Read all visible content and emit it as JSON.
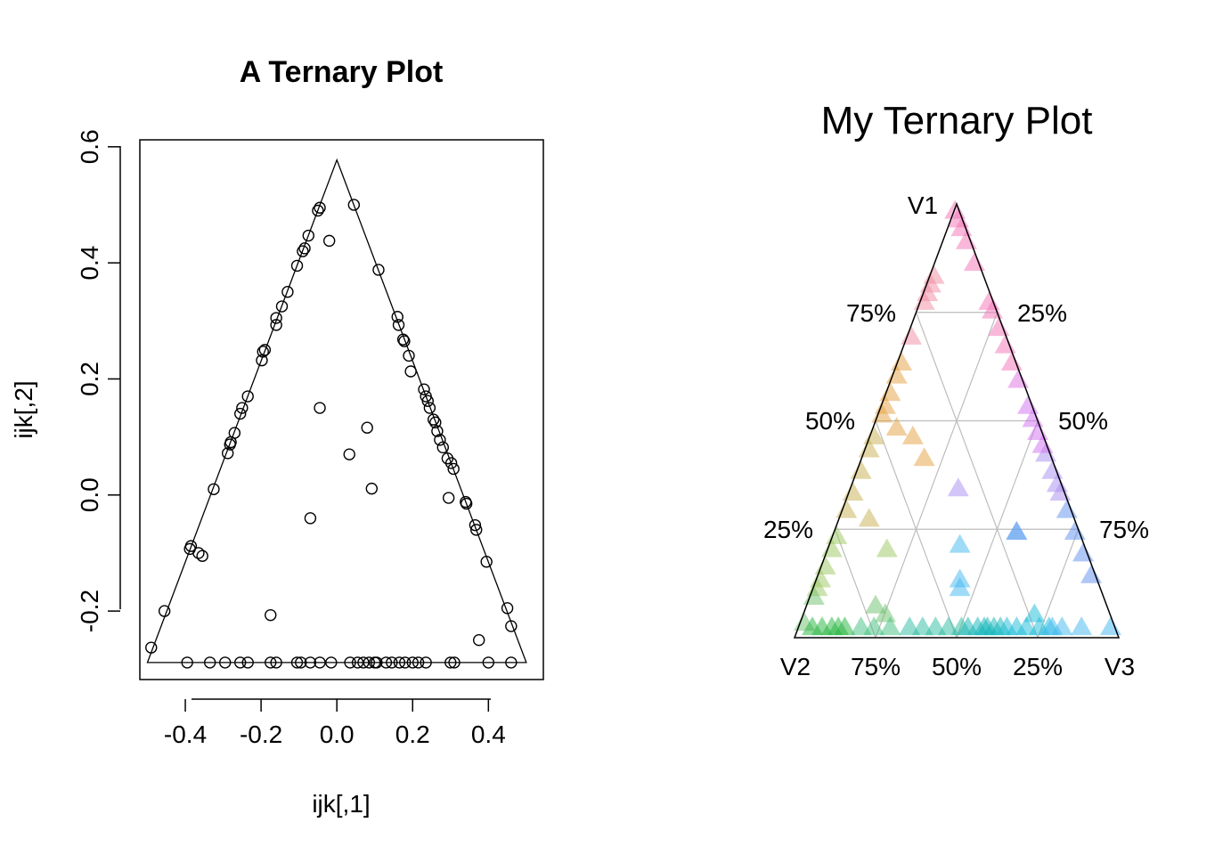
{
  "chart_data": [
    {
      "type": "scatter",
      "title": "A Ternary Plot",
      "xlabel": "ijk[,1]",
      "ylabel": "ijk[,2]",
      "xlim": [
        -0.52,
        0.545
      ],
      "ylim": [
        -0.318,
        0.612
      ],
      "xticks": [
        "-0.4",
        "-0.2",
        "0.0",
        "0.2",
        "0.4"
      ],
      "xtick_values": [
        -0.4,
        -0.2,
        0.0,
        0.2,
        0.4
      ],
      "yticks": [
        "-0.2",
        "0.0",
        "0.2",
        "0.4",
        "0.6"
      ],
      "ytick_values": [
        -0.2,
        0.0,
        0.2,
        0.4,
        0.6
      ],
      "triangle": [
        [
          -0.5,
          -0.2887
        ],
        [
          0.0,
          0.5774
        ],
        [
          0.5,
          -0.2887
        ]
      ],
      "points": [
        [
          -0.05,
          0.49
        ],
        [
          -0.045,
          0.495
        ],
        [
          0.045,
          0.5
        ],
        [
          -0.02,
          0.438
        ],
        [
          -0.075,
          0.447
        ],
        [
          -0.085,
          0.425
        ],
        [
          -0.09,
          0.42
        ],
        [
          -0.105,
          0.395
        ],
        [
          0.11,
          0.388
        ],
        [
          -0.13,
          0.35
        ],
        [
          -0.145,
          0.325
        ],
        [
          -0.16,
          0.305
        ],
        [
          -0.16,
          0.293
        ],
        [
          0.16,
          0.307
        ],
        [
          0.163,
          0.293
        ],
        [
          0.175,
          0.268
        ],
        [
          0.178,
          0.265
        ],
        [
          -0.19,
          0.25
        ],
        [
          -0.195,
          0.247
        ],
        [
          -0.198,
          0.232
        ],
        [
          0.19,
          0.24
        ],
        [
          0.195,
          0.213
        ],
        [
          -0.235,
          0.17
        ],
        [
          0.23,
          0.182
        ],
        [
          0.235,
          0.17
        ],
        [
          0.24,
          0.162
        ],
        [
          0.245,
          0.15
        ],
        [
          -0.25,
          0.15
        ],
        [
          -0.255,
          0.14
        ],
        [
          0.255,
          0.13
        ],
        [
          0.26,
          0.125
        ],
        [
          0.265,
          0.11
        ],
        [
          -0.27,
          0.107
        ],
        [
          -0.28,
          0.091
        ],
        [
          -0.282,
          0.087
        ],
        [
          -0.288,
          0.072
        ],
        [
          0.272,
          0.095
        ],
        [
          0.28,
          0.082
        ],
        [
          0.292,
          0.063
        ],
        [
          0.302,
          0.055
        ],
        [
          0.308,
          0.045
        ],
        [
          -0.325,
          0.01
        ],
        [
          -0.045,
          0.15
        ],
        [
          0.08,
          0.116
        ],
        [
          0.033,
          0.07
        ],
        [
          0.092,
          0.011
        ],
        [
          -0.07,
          -0.04
        ],
        [
          0.295,
          -0.005
        ],
        [
          0.34,
          -0.012
        ],
        [
          0.342,
          -0.015
        ],
        [
          0.365,
          -0.052
        ],
        [
          0.368,
          -0.06
        ],
        [
          -0.385,
          -0.088
        ],
        [
          -0.388,
          -0.093
        ],
        [
          -0.365,
          -0.1
        ],
        [
          -0.355,
          -0.105
        ],
        [
          0.395,
          -0.115
        ],
        [
          -0.175,
          -0.207
        ],
        [
          -0.455,
          -0.2
        ],
        [
          0.45,
          -0.195
        ],
        [
          0.46,
          -0.226
        ],
        [
          0.375,
          -0.25
        ],
        [
          -0.49,
          -0.263
        ],
        [
          -0.395,
          -0.2887
        ],
        [
          -0.335,
          -0.2887
        ],
        [
          -0.295,
          -0.2887
        ],
        [
          -0.255,
          -0.2887
        ],
        [
          -0.235,
          -0.2887
        ],
        [
          -0.175,
          -0.2887
        ],
        [
          -0.16,
          -0.2887
        ],
        [
          -0.105,
          -0.2887
        ],
        [
          -0.095,
          -0.2887
        ],
        [
          -0.07,
          -0.2887
        ],
        [
          -0.045,
          -0.2887
        ],
        [
          -0.015,
          -0.2887
        ],
        [
          0.035,
          -0.2887
        ],
        [
          0.055,
          -0.2887
        ],
        [
          0.07,
          -0.2887
        ],
        [
          0.085,
          -0.2887
        ],
        [
          0.1,
          -0.2887
        ],
        [
          0.105,
          -0.2887
        ],
        [
          0.13,
          -0.2887
        ],
        [
          0.145,
          -0.2887
        ],
        [
          0.165,
          -0.2887
        ],
        [
          0.18,
          -0.2887
        ],
        [
          0.2,
          -0.2887
        ],
        [
          0.215,
          -0.2887
        ],
        [
          0.235,
          -0.2887
        ],
        [
          0.3,
          -0.2887
        ],
        [
          0.31,
          -0.2887
        ],
        [
          0.4,
          -0.2887
        ],
        [
          0.46,
          -0.2887
        ]
      ]
    },
    {
      "type": "ternary",
      "title": "My Ternary Plot",
      "vertex_labels": [
        "V1",
        "V2",
        "V3"
      ],
      "left_ticks": [
        "25%",
        "50%",
        "75%"
      ],
      "right_ticks": [
        "25%",
        "50%",
        "75%"
      ],
      "bottom_ticks": [
        "75%",
        "50%",
        "25%"
      ],
      "grid": true,
      "points": [
        [
          0.97,
          0.02,
          0.01,
          "#f472b6"
        ],
        [
          0.95,
          0.02,
          0.03,
          "#f472b6"
        ],
        [
          0.93,
          0.02,
          0.05,
          "#f472b6"
        ],
        [
          0.9,
          0.02,
          0.08,
          "#f472b6"
        ],
        [
          0.85,
          0.02,
          0.13,
          "#f472b6"
        ],
        [
          0.76,
          0.02,
          0.22,
          "#f472b6"
        ],
        [
          0.74,
          0.02,
          0.24,
          "#f472b6"
        ],
        [
          0.7,
          0.02,
          0.28,
          "#f472b6"
        ],
        [
          0.66,
          0.02,
          0.32,
          "#f472b6"
        ],
        [
          0.62,
          0.02,
          0.36,
          "#f472b6"
        ],
        [
          0.82,
          0.16,
          0.02,
          "#f08aa0"
        ],
        [
          0.8,
          0.18,
          0.02,
          "#f08aa0"
        ],
        [
          0.78,
          0.2,
          0.02,
          "#f08aa0"
        ],
        [
          0.76,
          0.22,
          0.02,
          "#f08aa0"
        ],
        [
          0.68,
          0.3,
          0.02,
          "#f08aa0"
        ],
        [
          0.62,
          0.36,
          0.02,
          "#e6a040"
        ],
        [
          0.59,
          0.39,
          0.02,
          "#e6a040"
        ],
        [
          0.55,
          0.43,
          0.02,
          "#e6a040"
        ],
        [
          0.52,
          0.46,
          0.02,
          "#e6a040"
        ],
        [
          0.5,
          0.48,
          0.02,
          "#e6a040"
        ],
        [
          0.47,
          0.45,
          0.08,
          "#e6a040"
        ],
        [
          0.45,
          0.41,
          0.14,
          "#e6a040"
        ],
        [
          0.4,
          0.4,
          0.2,
          "#e6a040"
        ],
        [
          0.45,
          0.53,
          0.02,
          "#c8b050"
        ],
        [
          0.42,
          0.56,
          0.02,
          "#c8b050"
        ],
        [
          0.37,
          0.61,
          0.02,
          "#c8b050"
        ],
        [
          0.32,
          0.66,
          0.02,
          "#c8b050"
        ],
        [
          0.28,
          0.7,
          0.02,
          "#c8b050"
        ],
        [
          0.26,
          0.64,
          0.1,
          "#c8b050"
        ],
        [
          0.22,
          0.76,
          0.02,
          "#9cc860"
        ],
        [
          0.19,
          0.79,
          0.02,
          "#9cc860"
        ],
        [
          0.15,
          0.83,
          0.02,
          "#9cc860"
        ],
        [
          0.12,
          0.86,
          0.02,
          "#9cc860"
        ],
        [
          0.1,
          0.88,
          0.02,
          "#9cc860"
        ],
        [
          0.19,
          0.62,
          0.19,
          "#9cc860"
        ],
        [
          0.08,
          0.9,
          0.02,
          "#6cc06c"
        ],
        [
          0.02,
          0.96,
          0.02,
          "#6cc06c"
        ],
        [
          0.06,
          0.72,
          0.22,
          "#6cc06c"
        ],
        [
          0.04,
          0.7,
          0.26,
          "#6cc06c"
        ],
        [
          0.01,
          0.94,
          0.05,
          "#22b43c"
        ],
        [
          0.01,
          0.91,
          0.08,
          "#22b43c"
        ],
        [
          0.01,
          0.88,
          0.11,
          "#22b43c"
        ],
        [
          0.01,
          0.86,
          0.13,
          "#22b43c"
        ],
        [
          0.01,
          0.84,
          0.15,
          "#22b43c"
        ],
        [
          0.01,
          0.79,
          0.2,
          "#40c080"
        ],
        [
          0.01,
          0.75,
          0.24,
          "#40c080"
        ],
        [
          0.01,
          0.7,
          0.29,
          "#40c080"
        ],
        [
          0.01,
          0.64,
          0.35,
          "#2cbca0"
        ],
        [
          0.01,
          0.6,
          0.39,
          "#2cbca0"
        ],
        [
          0.01,
          0.56,
          0.43,
          "#2cbca0"
        ],
        [
          0.01,
          0.52,
          0.47,
          "#2cbca0"
        ],
        [
          0.01,
          0.48,
          0.51,
          "#2cbca0"
        ],
        [
          0.01,
          0.46,
          0.53,
          "#10b4b8"
        ],
        [
          0.01,
          0.43,
          0.56,
          "#10b4b8"
        ],
        [
          0.01,
          0.41,
          0.58,
          "#10b4b8"
        ],
        [
          0.01,
          0.4,
          0.59,
          "#10b4b8"
        ],
        [
          0.01,
          0.38,
          0.61,
          "#10b4b8"
        ],
        [
          0.01,
          0.36,
          0.63,
          "#10b4b8"
        ],
        [
          0.01,
          0.34,
          0.65,
          "#18bcd8"
        ],
        [
          0.01,
          0.31,
          0.68,
          "#18bcd8"
        ],
        [
          0.01,
          0.28,
          0.71,
          "#18bcd8"
        ],
        [
          0.01,
          0.24,
          0.75,
          "#18bcd8"
        ],
        [
          0.01,
          0.21,
          0.78,
          "#18bcd8"
        ],
        [
          0.04,
          0.24,
          0.72,
          "#18bcd8"
        ],
        [
          0.01,
          0.2,
          0.79,
          "#40b8f0"
        ],
        [
          0.01,
          0.17,
          0.82,
          "#40b8f0"
        ],
        [
          0.01,
          0.11,
          0.88,
          "#40b8f0"
        ],
        [
          0.01,
          0.02,
          0.97,
          "#40b8f0"
        ],
        [
          0.2,
          0.39,
          0.41,
          "#40b8f0"
        ],
        [
          0.12,
          0.43,
          0.45,
          "#40b8f0"
        ],
        [
          0.1,
          0.44,
          0.46,
          "#40b8f0"
        ],
        [
          0.23,
          0.2,
          0.57,
          "#60a0f0"
        ],
        [
          0.23,
          0.2,
          0.57,
          "#60a0f0"
        ],
        [
          0.28,
          0.02,
          0.7,
          "#6090f0"
        ],
        [
          0.23,
          0.02,
          0.75,
          "#6090f0"
        ],
        [
          0.18,
          0.02,
          0.8,
          "#6090f0"
        ],
        [
          0.13,
          0.02,
          0.85,
          "#6090f0"
        ],
        [
          0.33,
          0.33,
          0.34,
          "#a88cf0"
        ],
        [
          0.41,
          0.02,
          0.57,
          "#a88cf0"
        ],
        [
          0.37,
          0.02,
          0.61,
          "#a88cf0"
        ],
        [
          0.34,
          0.02,
          0.64,
          "#a88cf0"
        ],
        [
          0.32,
          0.02,
          0.66,
          "#a88cf0"
        ],
        [
          0.52,
          0.02,
          0.46,
          "#d070f0"
        ],
        [
          0.49,
          0.02,
          0.49,
          "#d070f0"
        ],
        [
          0.46,
          0.02,
          0.52,
          "#d070f0"
        ],
        [
          0.43,
          0.02,
          0.55,
          "#d070f0"
        ],
        [
          0.58,
          0.02,
          0.4,
          "#e070e0"
        ]
      ]
    }
  ]
}
